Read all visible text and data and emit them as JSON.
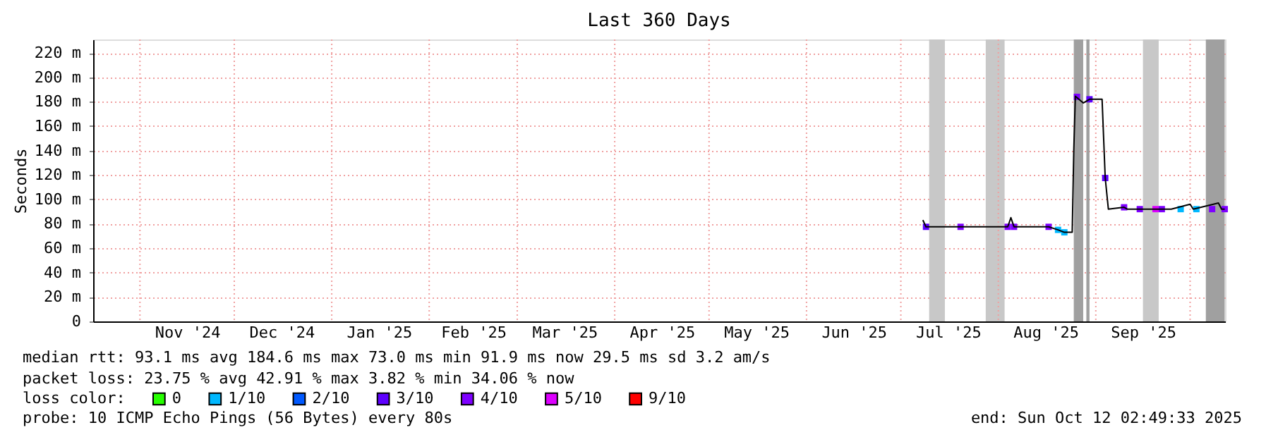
{
  "chart_data": {
    "type": "line",
    "title": "Last 360 Days",
    "ylabel": "Seconds",
    "legend_title": "loss color:",
    "legend": "bottom",
    "grid": true,
    "marker": "none",
    "line_style": "solid",
    "xlim": [
      "2024-10-17T02:49",
      "2025-10-12T02:49"
    ],
    "xticks": [
      {
        "value": "2024-11-01",
        "label": null
      },
      {
        "value": "2024-11-16",
        "label": "Nov '24"
      },
      {
        "value": "2024-12-01",
        "label": null
      },
      {
        "value": "2024-12-16",
        "label": "Dec '24"
      },
      {
        "value": "2025-01-01",
        "label": null
      },
      {
        "value": "2025-01-16",
        "label": "Jan '25"
      },
      {
        "value": "2025-02-01",
        "label": null
      },
      {
        "value": "2025-02-15",
        "label": "Feb '25"
      },
      {
        "value": "2025-03-01",
        "label": null
      },
      {
        "value": "2025-03-16",
        "label": "Mar '25"
      },
      {
        "value": "2025-04-01",
        "label": null
      },
      {
        "value": "2025-04-16",
        "label": "Apr '25"
      },
      {
        "value": "2025-05-01",
        "label": null
      },
      {
        "value": "2025-05-16",
        "label": "May '25"
      },
      {
        "value": "2025-06-01",
        "label": null
      },
      {
        "value": "2025-06-16",
        "label": "Jun '25"
      },
      {
        "value": "2025-07-01",
        "label": null
      },
      {
        "value": "2025-07-16",
        "label": "Jul '25"
      },
      {
        "value": "2025-08-01",
        "label": null
      },
      {
        "value": "2025-08-16",
        "label": "Aug '25"
      },
      {
        "value": "2025-09-01",
        "label": null
      },
      {
        "value": "2025-09-16",
        "label": "Sep '25"
      },
      {
        "value": "2025-10-01",
        "label": null
      }
    ],
    "ylim": [
      0,
      231
    ],
    "yticks": [
      0,
      {
        "value": 20,
        "label": "20 m"
      },
      {
        "value": 40,
        "label": "40 m"
      },
      {
        "value": 60,
        "label": "60 m"
      },
      {
        "value": 80,
        "label": "80 m"
      },
      {
        "value": 100,
        "label": "100 m"
      },
      {
        "value": 120,
        "label": "120 m"
      },
      {
        "value": 140,
        "label": "140 m"
      },
      {
        "value": 160,
        "label": "160 m"
      },
      {
        "value": 180,
        "label": "180 m"
      },
      {
        "value": 200,
        "label": "200 m"
      },
      {
        "value": 220,
        "label": "220 m"
      }
    ],
    "bands": [
      {
        "axis": "x",
        "from": "2025-07-10",
        "to": "2025-07-15",
        "color": "#c8c8c8"
      },
      {
        "axis": "x",
        "from": "2025-07-28",
        "to": "2025-08-03",
        "color": "#c8c8c8"
      },
      {
        "axis": "x",
        "from": "2025-08-25",
        "to": "2025-08-28",
        "color": "#a0a0a0"
      },
      {
        "axis": "x",
        "from": "2025-08-29",
        "to": "2025-08-30",
        "color": "#a0a0a0"
      },
      {
        "axis": "x",
        "from": "2025-09-16",
        "to": "2025-09-21",
        "color": "#c8c8c8"
      },
      {
        "axis": "x",
        "from": "2025-10-06",
        "to": "2025-10-12",
        "color": "#a0a0a0"
      }
    ],
    "series": [
      {
        "color": "#000000",
        "x": [
          "2025-07-08",
          "2025-07-09",
          "2025-07-20",
          "2025-08-04",
          "2025-08-05",
          "2025-08-06",
          "2025-08-17",
          "2025-08-20",
          "2025-08-22",
          "2025-08-24T12:00",
          "2025-08-25",
          "2025-08-25T12:00",
          "2025-08-28",
          "2025-08-30",
          "2025-09-03",
          "2025-09-04",
          "2025-09-05",
          "2025-09-10",
          "2025-09-11",
          "2025-09-25",
          "2025-10-01",
          "2025-10-02",
          "2025-10-10",
          "2025-10-11",
          "2025-10-12"
        ],
        "values": [
          83,
          77.5,
          77.5,
          77.5,
          85,
          77.5,
          77.5,
          75,
          73,
          73,
          140,
          184.5,
          179,
          182,
          182,
          117.5,
          92,
          93.5,
          92,
          92,
          96,
          92,
          97,
          92,
          92
        ]
      },
      {
        "name": "0",
        "color": "#26ff00",
        "type": "scatter",
        "marker": "square"
      },
      {
        "name": "1/10",
        "color": "#00b8ff",
        "type": "scatter",
        "marker": "square",
        "x": [
          "2025-08-20",
          "2025-08-22",
          "2025-09-28",
          "2025-10-03"
        ],
        "values": [
          75,
          73,
          92,
          92
        ]
      },
      {
        "name": "2/10",
        "color": "#0059ff",
        "type": "scatter",
        "marker": "square"
      },
      {
        "name": "3/10",
        "color": "#5e00ff",
        "type": "scatter",
        "marker": "square",
        "x": [
          "2025-07-09",
          "2025-08-30",
          "2025-09-04"
        ],
        "values": [
          77.5,
          182,
          117.5
        ]
      },
      {
        "name": "4/10",
        "color": "#7e00ff",
        "type": "scatter",
        "marker": "square",
        "x": [
          "2025-07-20",
          "2025-08-04",
          "2025-08-06",
          "2025-08-17",
          "2025-08-26",
          "2025-09-10",
          "2025-09-15",
          "2025-09-22",
          "2025-10-08",
          "2025-10-12"
        ],
        "values": [
          77.5,
          77.5,
          77.5,
          77.5,
          184,
          93.5,
          92,
          92,
          92,
          92
        ]
      },
      {
        "name": "5/10",
        "color": "#dd00ff",
        "type": "scatter",
        "marker": "square",
        "x": [
          "2025-09-20"
        ],
        "values": [
          92
        ]
      },
      {
        "name": "9/10",
        "color": "#ff0000",
        "type": "scatter",
        "marker": "square"
      }
    ],
    "annotations": [
      "median rtt:  93.1 ms avg  184.6 ms max  73.0 ms min  91.9 ms now  29.5 ms sd  3.2   am/s",
      "packet loss: 23.75 % avg  42.91 % max  3.82 % min  34.06 % now",
      "probe:       10 ICMP Echo Pings (56 Bytes) every 80s",
      "end: Sun Oct 12 02:49:33 2025"
    ]
  }
}
